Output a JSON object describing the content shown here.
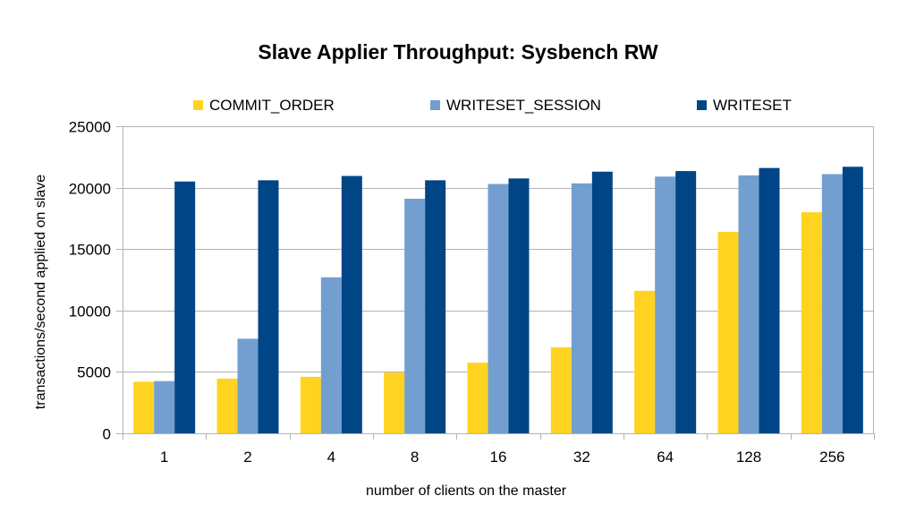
{
  "chart_data": {
    "type": "bar",
    "title": "Slave Applier Throughput: Sysbench RW",
    "xlabel": "number of clients on the master",
    "ylabel": "transactions/second applied on slave",
    "ylim": [
      0,
      25000
    ],
    "yticks": [
      0,
      5000,
      10000,
      15000,
      20000,
      25000
    ],
    "categories": [
      "1",
      "2",
      "4",
      "8",
      "16",
      "32",
      "64",
      "128",
      "256"
    ],
    "legend_position": "top",
    "grid": true,
    "series": [
      {
        "name": "COMMIT_ORDER",
        "color": "#ffd320",
        "values": [
          4200,
          4450,
          4600,
          4950,
          5750,
          7000,
          11600,
          16400,
          18000
        ]
      },
      {
        "name": "WRITESET_SESSION",
        "color": "#729fcf",
        "values": [
          4250,
          7700,
          12700,
          19100,
          20300,
          20350,
          20900,
          21000,
          21100
        ]
      },
      {
        "name": "WRITESET",
        "color": "#004586",
        "values": [
          20500,
          20600,
          20950,
          20600,
          20750,
          21300,
          21350,
          21600,
          21700
        ]
      }
    ]
  }
}
